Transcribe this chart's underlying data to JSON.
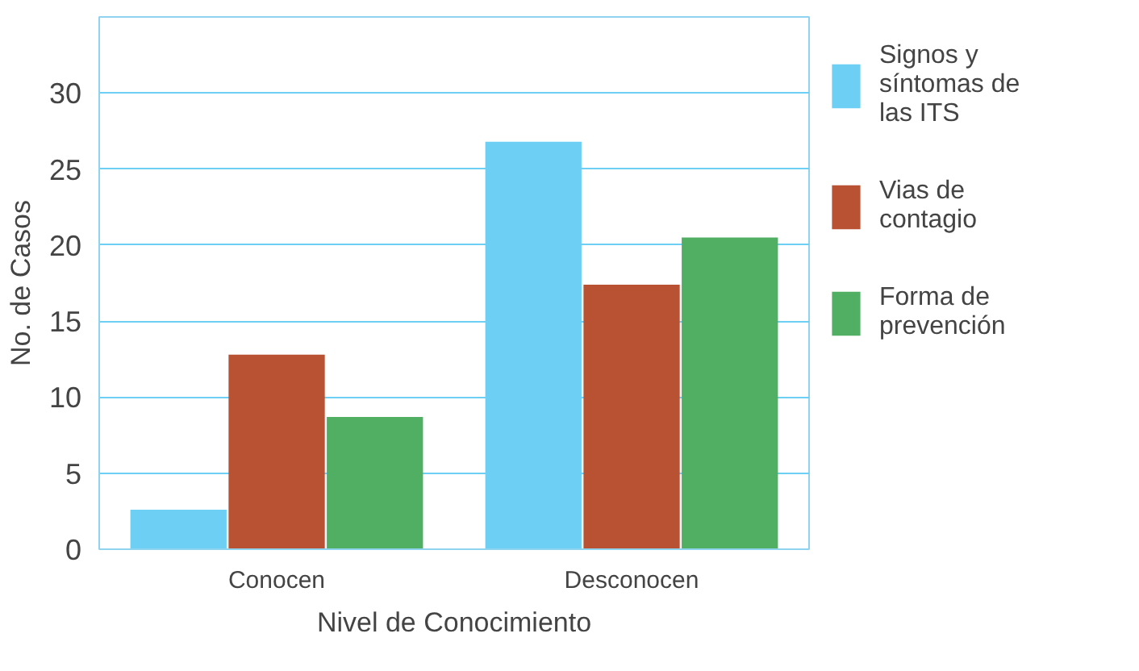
{
  "chart_data": {
    "type": "bar",
    "xlabel": "Nivel de Conocimiento",
    "ylabel": "No. de Casos",
    "categories": [
      "Conocen",
      "Desconocen"
    ],
    "series": [
      {
        "name": "Signos y síntomas de las ITS",
        "color": "#6ecff5",
        "values": [
          2.6,
          26.8
        ]
      },
      {
        "name": "Vias de contagio",
        "color": "#b85233",
        "values": [
          12.8,
          17.4
        ]
      },
      {
        "name": "Forma de prevención",
        "color": "#50af62",
        "values": [
          8.7,
          20.5
        ]
      }
    ],
    "ylim": [
      0,
      35
    ],
    "yticks": [
      0,
      5,
      10,
      15,
      20,
      25,
      30
    ],
    "grid": "y",
    "legend": "right"
  }
}
